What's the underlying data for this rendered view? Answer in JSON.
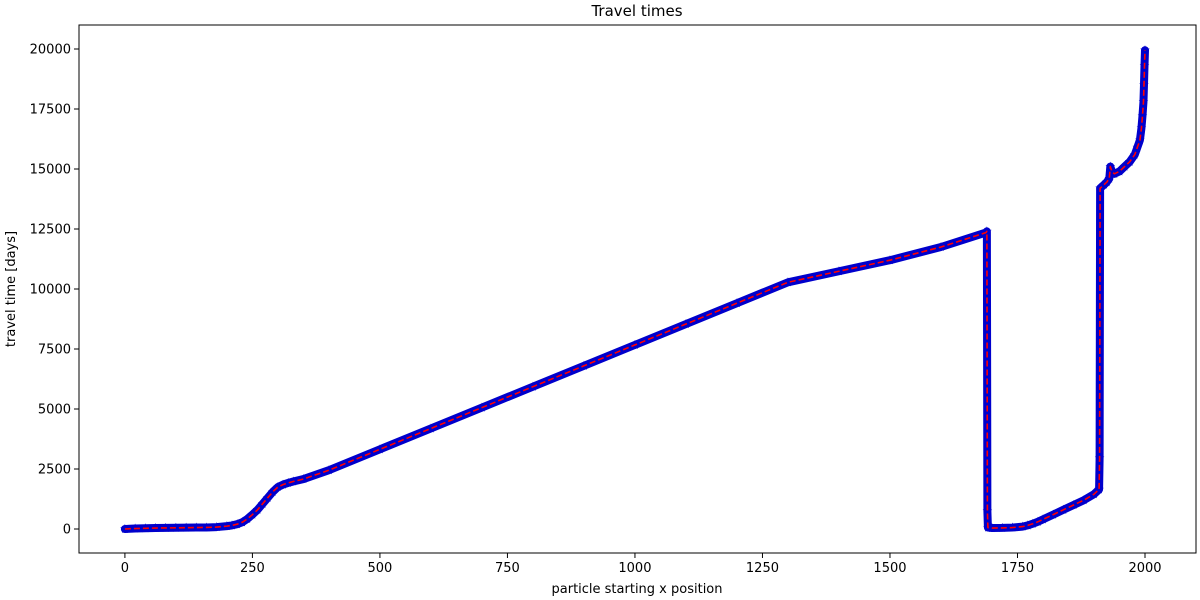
{
  "chart_data": {
    "type": "line",
    "title": "Travel times",
    "xlabel": "particle starting x position",
    "ylabel": "travel time [days]",
    "xlim": [
      -90,
      2100
    ],
    "ylim": [
      -1000,
      21000
    ],
    "xticks": [
      0,
      250,
      500,
      750,
      1000,
      1250,
      1500,
      1750,
      2000
    ],
    "yticks": [
      0,
      2500,
      5000,
      7500,
      10000,
      12500,
      15000,
      17500,
      20000
    ],
    "grid": false,
    "colors": {
      "marker": "#0000cc",
      "line": "#ff0000"
    },
    "series": [
      {
        "marker": "star",
        "line_style": "dashed",
        "points": [
          [
            0,
            0
          ],
          [
            20,
            20
          ],
          [
            40,
            30
          ],
          [
            60,
            40
          ],
          [
            80,
            45
          ],
          [
            100,
            50
          ],
          [
            120,
            55
          ],
          [
            140,
            60
          ],
          [
            160,
            65
          ],
          [
            180,
            80
          ],
          [
            200,
            120
          ],
          [
            210,
            150
          ],
          [
            220,
            200
          ],
          [
            230,
            280
          ],
          [
            240,
            420
          ],
          [
            250,
            600
          ],
          [
            260,
            800
          ],
          [
            270,
            1050
          ],
          [
            280,
            1300
          ],
          [
            290,
            1550
          ],
          [
            300,
            1750
          ],
          [
            310,
            1850
          ],
          [
            320,
            1920
          ],
          [
            330,
            1980
          ],
          [
            350,
            2080
          ],
          [
            400,
            2450
          ],
          [
            500,
            3320
          ],
          [
            600,
            4190
          ],
          [
            700,
            5060
          ],
          [
            800,
            5930
          ],
          [
            900,
            6800
          ],
          [
            1000,
            7670
          ],
          [
            1100,
            8540
          ],
          [
            1200,
            9410
          ],
          [
            1300,
            10280
          ],
          [
            1400,
            10740
          ],
          [
            1500,
            11200
          ],
          [
            1600,
            11750
          ],
          [
            1688,
            12350
          ],
          [
            1690,
            12400
          ],
          [
            1691,
            750
          ],
          [
            1692,
            60
          ],
          [
            1700,
            40
          ],
          [
            1720,
            45
          ],
          [
            1740,
            60
          ],
          [
            1760,
            100
          ],
          [
            1770,
            150
          ],
          [
            1780,
            220
          ],
          [
            1790,
            300
          ],
          [
            1800,
            400
          ],
          [
            1820,
            600
          ],
          [
            1840,
            800
          ],
          [
            1860,
            1000
          ],
          [
            1880,
            1200
          ],
          [
            1900,
            1450
          ],
          [
            1910,
            1650
          ],
          [
            1911,
            2950
          ],
          [
            1912,
            14200
          ],
          [
            1920,
            14350
          ],
          [
            1925,
            14450
          ],
          [
            1930,
            14600
          ],
          [
            1932,
            15100
          ],
          [
            1935,
            14900
          ],
          [
            1940,
            14800
          ],
          [
            1950,
            14900
          ],
          [
            1960,
            15100
          ],
          [
            1970,
            15300
          ],
          [
            1980,
            15600
          ],
          [
            1985,
            15900
          ],
          [
            1990,
            16200
          ],
          [
            1993,
            16700
          ],
          [
            1995,
            17200
          ],
          [
            1997,
            17800
          ],
          [
            1998,
            18500
          ],
          [
            1999,
            19300
          ],
          [
            2000,
            19950
          ]
        ]
      }
    ]
  }
}
